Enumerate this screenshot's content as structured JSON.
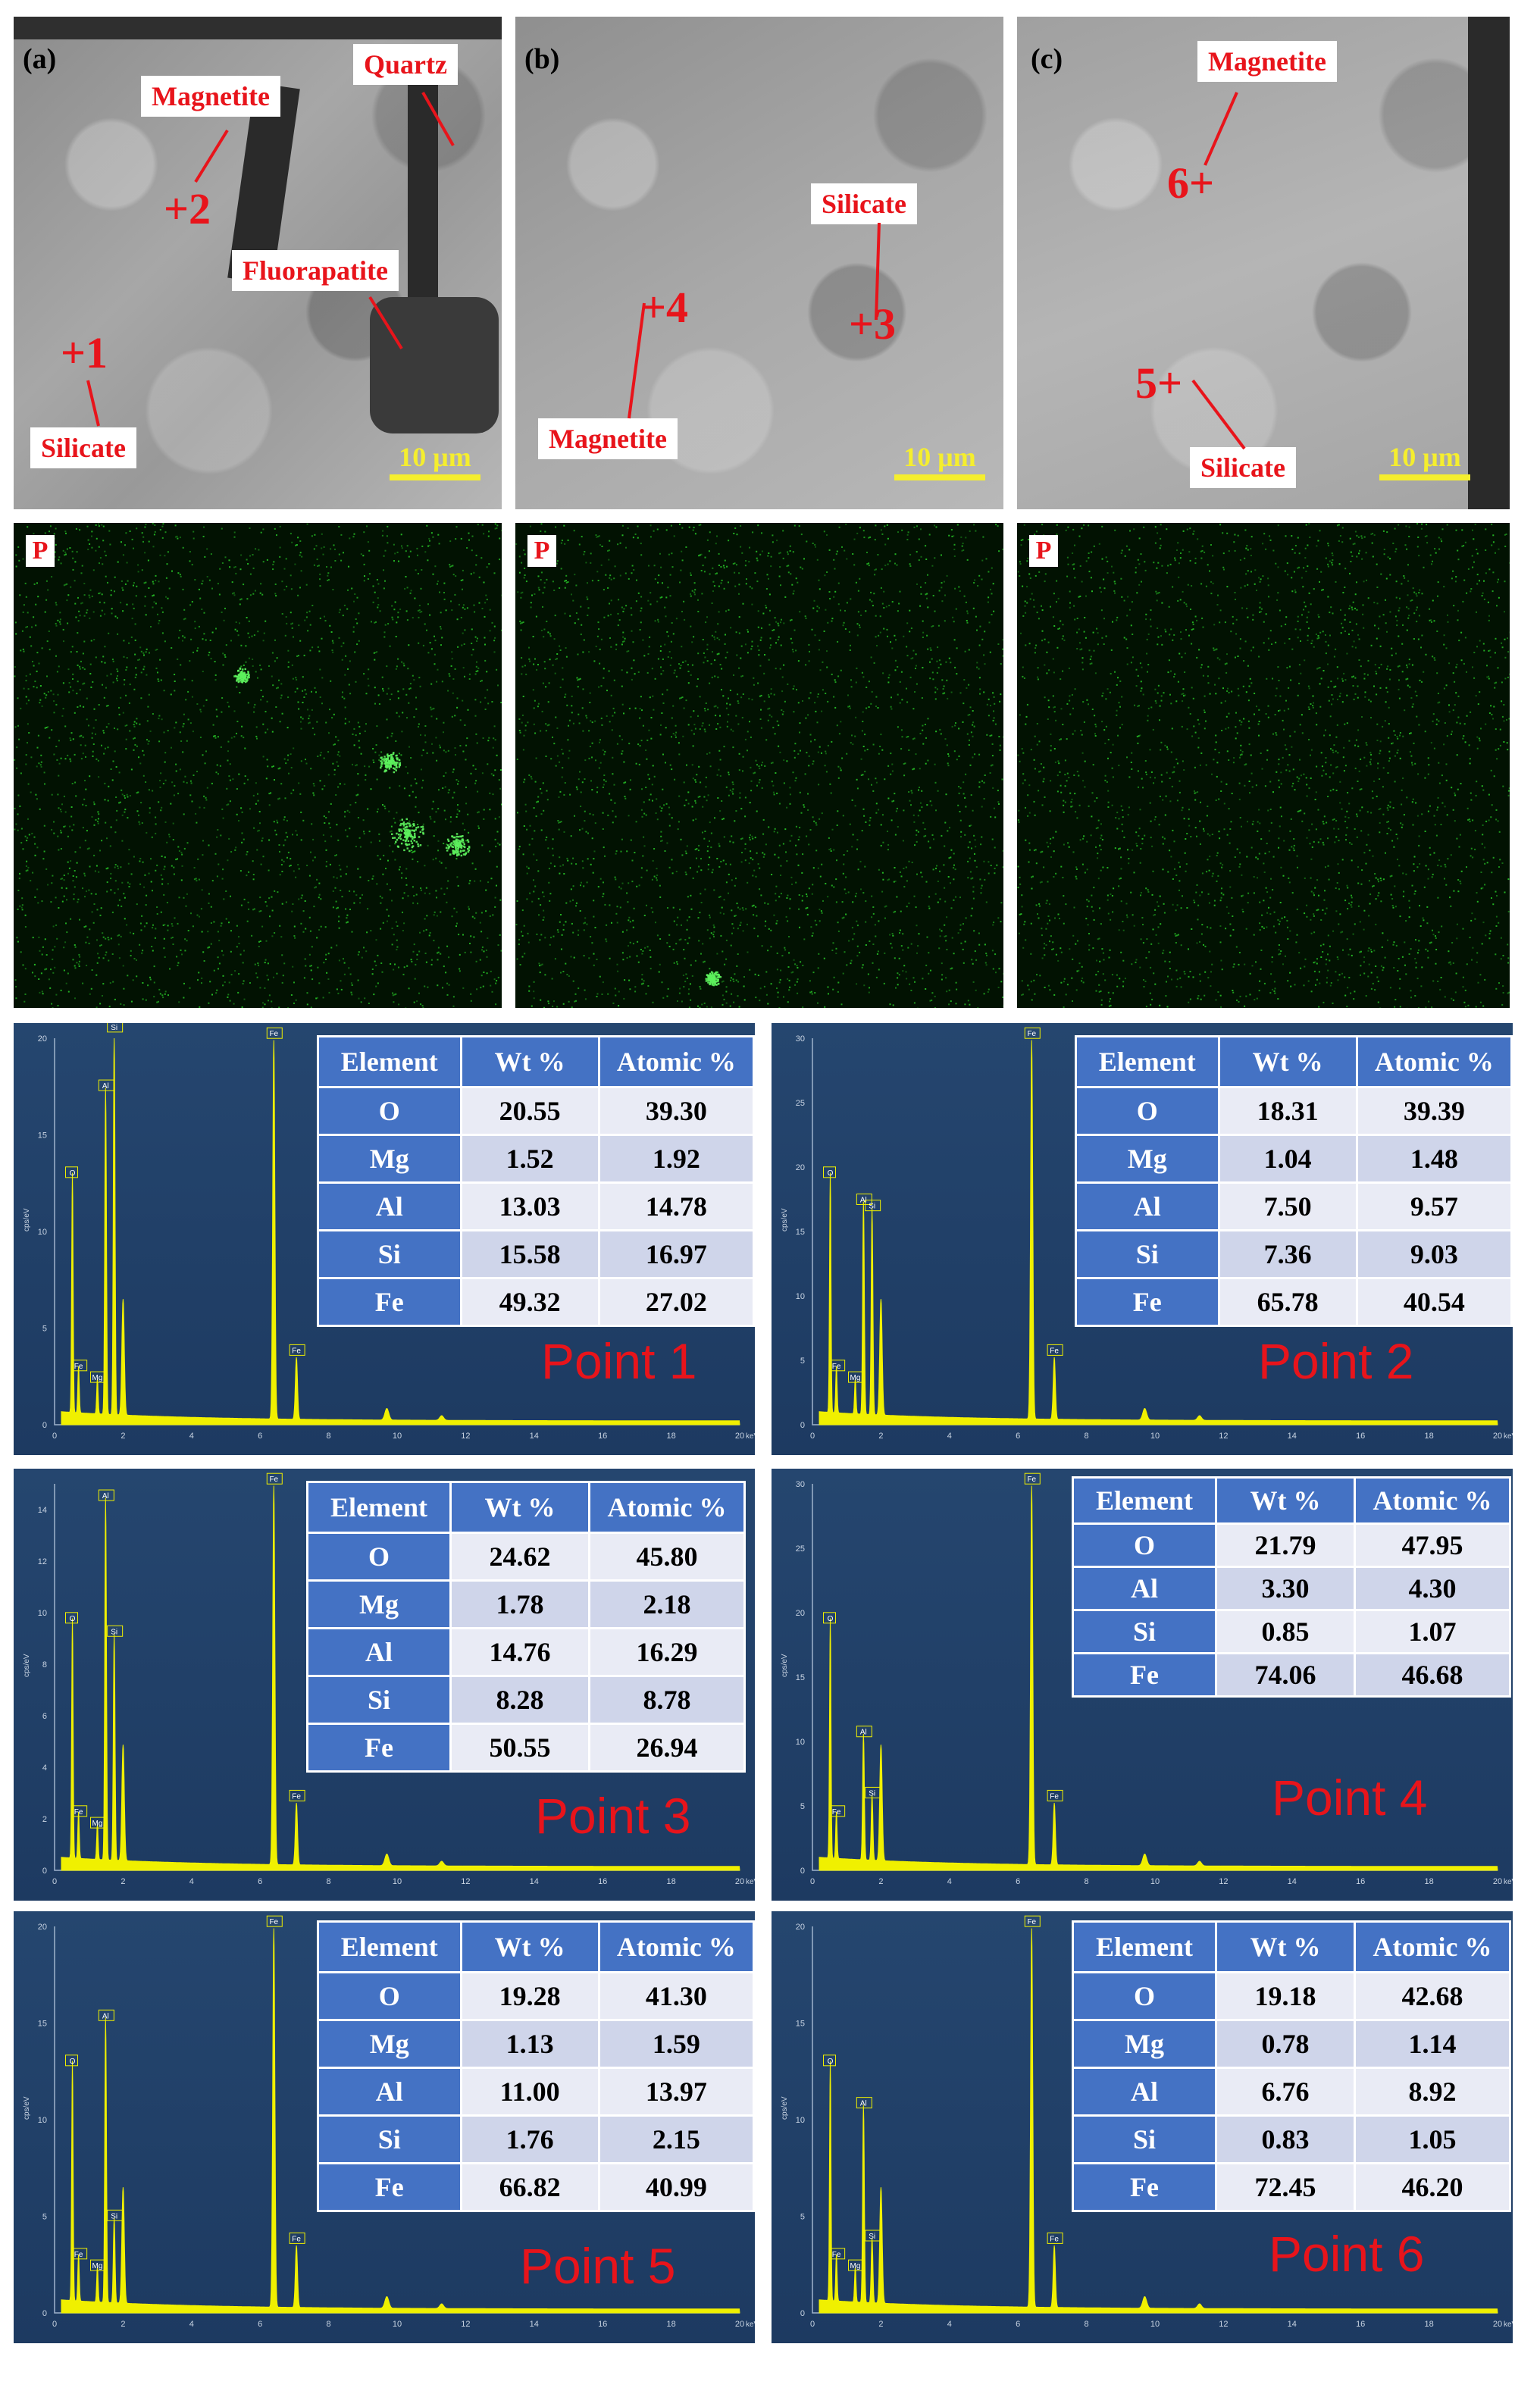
{
  "sem_panels": [
    {
      "label": "(a)",
      "tags": [
        "Magnetite",
        "Quartz",
        "Fluorapatite",
        "Silicate"
      ],
      "points": [
        "+2",
        "+1"
      ],
      "scale": "10 μm"
    },
    {
      "label": "(b)",
      "tags": [
        "Silicate",
        "Magnetite"
      ],
      "points": [
        "+4",
        "+3"
      ],
      "scale": "10 μm"
    },
    {
      "label": "(c)",
      "tags": [
        "Magnetite",
        "Silicate"
      ],
      "points": [
        "6+",
        "5+"
      ],
      "scale": "10 μm"
    }
  ],
  "map_label": "P",
  "spectra": [
    {
      "point": "Point 1",
      "headers": [
        "Element",
        "Wt %",
        "Atomic %"
      ],
      "rows": [
        [
          "O",
          "20.55",
          "39.30"
        ],
        [
          "Mg",
          "1.52",
          "1.92"
        ],
        [
          "Al",
          "13.03",
          "14.78"
        ],
        [
          "Si",
          "15.58",
          "16.97"
        ],
        [
          "Fe",
          "49.32",
          "27.02"
        ]
      ],
      "ymax": 20,
      "yticks": [
        "0",
        "5",
        "10",
        "15",
        "20"
      ]
    },
    {
      "point": "Point 2",
      "headers": [
        "Element",
        "Wt %",
        "Atomic %"
      ],
      "rows": [
        [
          "O",
          "18.31",
          "39.39"
        ],
        [
          "Mg",
          "1.04",
          "1.48"
        ],
        [
          "Al",
          "7.50",
          "9.57"
        ],
        [
          "Si",
          "7.36",
          "9.03"
        ],
        [
          "Fe",
          "65.78",
          "40.54"
        ]
      ],
      "ymax": 30,
      "yticks": [
        "0",
        "5",
        "10",
        "15",
        "20",
        "25",
        "30"
      ]
    },
    {
      "point": "Point 3",
      "headers": [
        "Element",
        "Wt %",
        "Atomic %"
      ],
      "rows": [
        [
          "O",
          "24.62",
          "45.80"
        ],
        [
          "Mg",
          "1.78",
          "2.18"
        ],
        [
          "Al",
          "14.76",
          "16.29"
        ],
        [
          "Si",
          "8.28",
          "8.78"
        ],
        [
          "Fe",
          "50.55",
          "26.94"
        ]
      ],
      "ymax": 15,
      "yticks": [
        "0",
        "2",
        "4",
        "6",
        "8",
        "10",
        "12",
        "14"
      ]
    },
    {
      "point": "Point 4",
      "headers": [
        "Element",
        "Wt %",
        "Atomic %"
      ],
      "rows": [
        [
          "O",
          "21.79",
          "47.95"
        ],
        [
          "Al",
          "3.30",
          "4.30"
        ],
        [
          "Si",
          "0.85",
          "1.07"
        ],
        [
          "Fe",
          "74.06",
          "46.68"
        ]
      ],
      "ymax": 30,
      "yticks": [
        "0",
        "5",
        "10",
        "15",
        "20",
        "25",
        "30"
      ]
    },
    {
      "point": "Point 5",
      "headers": [
        "Element",
        "Wt %",
        "Atomic %"
      ],
      "rows": [
        [
          "O",
          "19.28",
          "41.30"
        ],
        [
          "Mg",
          "1.13",
          "1.59"
        ],
        [
          "Al",
          "11.00",
          "13.97"
        ],
        [
          "Si",
          "1.76",
          "2.15"
        ],
        [
          "Fe",
          "66.82",
          "40.99"
        ]
      ],
      "ymax": 20,
      "yticks": [
        "0",
        "5",
        "10",
        "15",
        "20"
      ]
    },
    {
      "point": "Point 6",
      "headers": [
        "Element",
        "Wt %",
        "Atomic %"
      ],
      "rows": [
        [
          "O",
          "19.18",
          "42.68"
        ],
        [
          "Mg",
          "0.78",
          "1.14"
        ],
        [
          "Al",
          "6.76",
          "8.92"
        ],
        [
          "Si",
          "0.83",
          "1.05"
        ],
        [
          "Fe",
          "72.45",
          "46.20"
        ]
      ],
      "ymax": 20,
      "yticks": [
        "0",
        "5",
        "10",
        "15",
        "20"
      ]
    }
  ],
  "axis": {
    "xticks": [
      "0",
      "2",
      "4",
      "6",
      "8",
      "10",
      "12",
      "14",
      "16",
      "18",
      "20"
    ],
    "xunit": "keV",
    "yunit": "cps/eV"
  },
  "colors": {
    "red_text": "#e8141b",
    "scale_yellow": "#f5ee2e",
    "table_header": "#4472c4",
    "spectrum_bg": "#1f3d66",
    "spectrum_line": "#f0f000",
    "map_dots": "#2bd62b"
  }
}
